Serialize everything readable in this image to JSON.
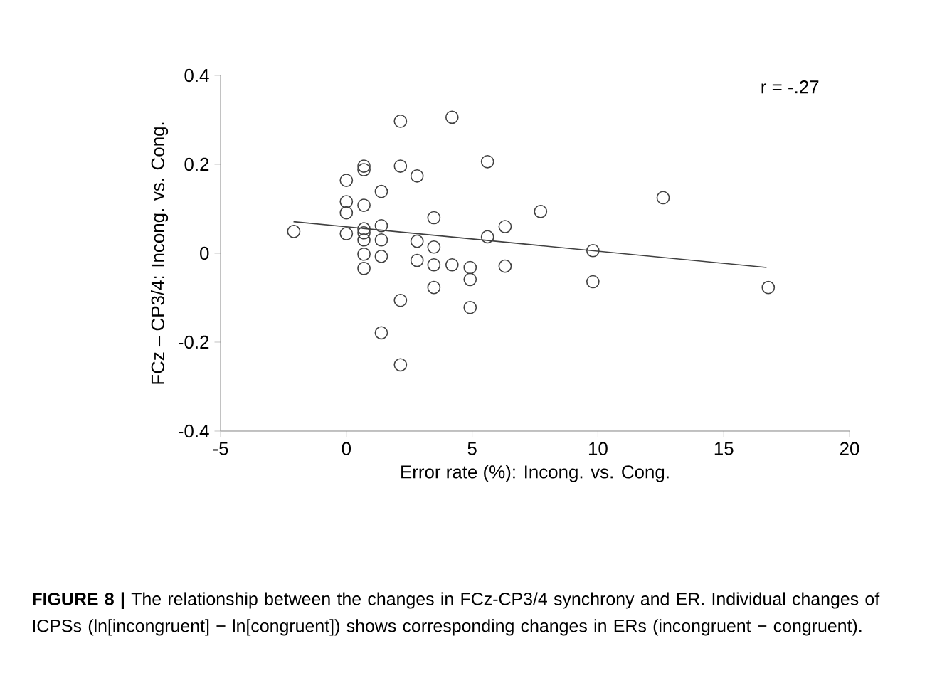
{
  "chart_data": {
    "type": "scatter",
    "xlabel": "Error rate (%): Incong. vs. Cong.",
    "ylabel": "FCz – CP3/4: Incong. vs. Cong.",
    "xlim": [
      -5,
      20
    ],
    "xticks": [
      -5,
      0,
      5,
      10,
      15,
      20
    ],
    "ylim": [
      -0.4,
      0.4
    ],
    "yticks": [
      -0.4,
      -0.2,
      0,
      0.2,
      0.4
    ],
    "grid": false,
    "series": [
      {
        "marker": "circle",
        "color": "#404040",
        "x": [
          -2.09,
          0,
          0,
          0,
          0,
          0.7,
          0.7,
          0.7,
          0.7,
          0.7,
          0.7,
          0.7,
          0.7,
          1.39,
          1.39,
          1.39,
          1.39,
          1.39,
          2.15,
          2.15,
          2.15,
          2.15,
          2.81,
          2.81,
          2.81,
          3.48,
          3.48,
          3.48,
          3.48,
          4.2,
          4.2,
          4.92,
          4.92,
          4.92,
          5.61,
          5.61,
          6.31,
          6.31,
          7.72,
          9.8,
          9.8,
          12.59,
          16.77
        ],
        "values": [
          0.049,
          0.164,
          0.116,
          0.091,
          0.044,
          0.196,
          0.188,
          0.108,
          0.055,
          0.046,
          0.03,
          -0.002,
          -0.034,
          0.139,
          0.062,
          0.03,
          -0.007,
          -0.179,
          0.297,
          0.196,
          -0.106,
          -0.251,
          0.174,
          0.027,
          -0.016,
          0.08,
          0.014,
          -0.026,
          -0.077,
          0.306,
          -0.026,
          -0.032,
          -0.059,
          -0.122,
          0.206,
          0.037,
          0.06,
          -0.029,
          0.094,
          0.006,
          -0.064,
          0.125,
          -0.077
        ]
      },
      {
        "type": "line",
        "marker": "none",
        "color": "#404040",
        "x": [
          -2.1,
          16.7
        ],
        "values": [
          0.071,
          -0.032
        ]
      }
    ],
    "annotations": [
      "r = -.27",
      "**FIGURE 8 |** The relationship between the changes in FCz-CP3/4 synchrony and ER. Individual changes of ICPSs (ln[incongruent] − ln[congruent]) shows corresponding changes in ERs (incongruent − congruent)."
    ]
  }
}
